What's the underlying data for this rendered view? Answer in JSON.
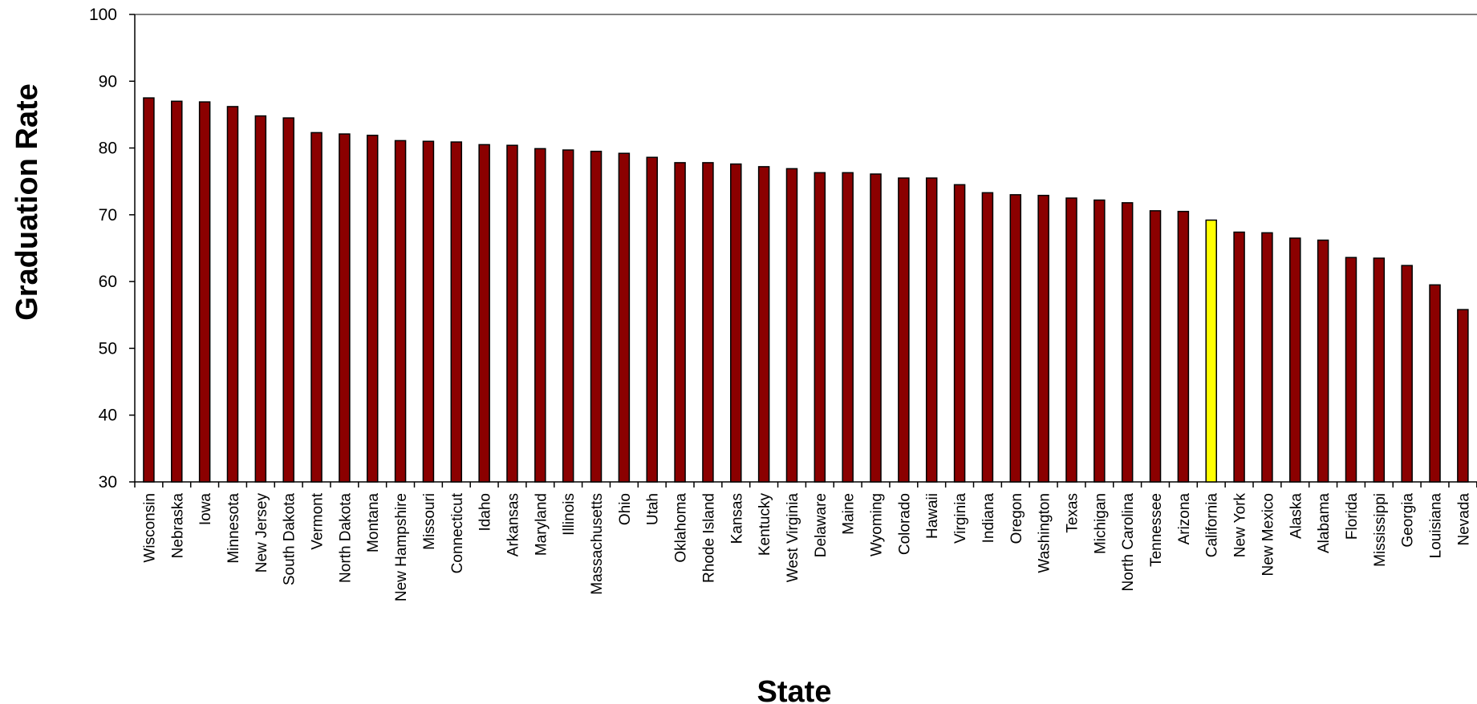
{
  "chart_data": {
    "type": "bar",
    "title": "",
    "xlabel": "State",
    "ylabel": "Graduation Rate",
    "ylim": [
      30,
      100
    ],
    "yticks": [
      30,
      40,
      50,
      60,
      70,
      80,
      90,
      100
    ],
    "grid": false,
    "legend": "none",
    "categories": [
      "Wisconsin",
      "Nebraska",
      "Iowa",
      "Minnesota",
      "New Jersey",
      "South Dakota",
      "Vermont",
      "North Dakota",
      "Montana",
      "New Hampshire",
      "Missouri",
      "Connecticut",
      "Idaho",
      "Arkansas",
      "Maryland",
      "Illinois",
      "Massachusetts",
      "Ohio",
      "Utah",
      "Oklahoma",
      "Rhode Island",
      "Kansas",
      "Kentucky",
      "West Virginia",
      "Delaware",
      "Maine",
      "Wyoming",
      "Colorado",
      "Hawaii",
      "Virginia",
      "Indiana",
      "Oregon",
      "Washington",
      "Texas",
      "Michigan",
      "North Carolina",
      "Tennessee",
      "Arizona",
      "California",
      "New York",
      "New Mexico",
      "Alaska",
      "Alabama",
      "Florida",
      "Mississippi",
      "Georgia",
      "Louisiana",
      "Nevada"
    ],
    "values": [
      87.5,
      87.0,
      86.9,
      86.2,
      84.8,
      84.5,
      82.3,
      82.1,
      81.9,
      81.1,
      81.0,
      80.9,
      80.5,
      80.4,
      79.9,
      79.7,
      79.5,
      79.2,
      78.6,
      77.8,
      77.8,
      77.6,
      77.2,
      76.9,
      76.3,
      76.3,
      76.1,
      75.5,
      75.5,
      74.5,
      73.3,
      73.0,
      72.9,
      72.5,
      72.2,
      71.8,
      70.6,
      70.5,
      69.2,
      67.4,
      67.3,
      66.5,
      66.2,
      63.6,
      63.5,
      62.4,
      59.5,
      55.8
    ],
    "highlight": "California",
    "colors": {
      "bar": "#8B0000",
      "highlight": "#FFFF00",
      "outline": "#000000"
    }
  }
}
